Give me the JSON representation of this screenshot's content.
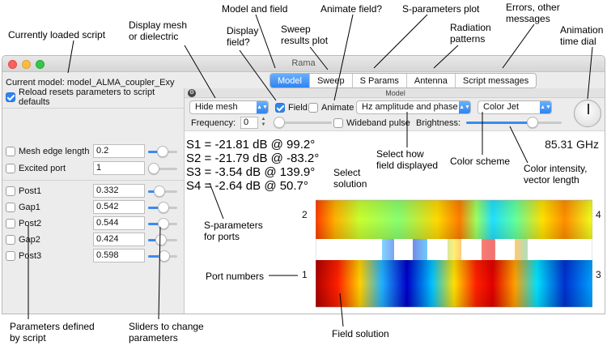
{
  "window": {
    "title": "Rama",
    "tabs": [
      "Model",
      "Sweep",
      "S Params",
      "Antenna",
      "Script messages"
    ],
    "active_tab": "Model"
  },
  "left_panel": {
    "current_model_label": "Current model:",
    "current_model_name": "model_ALMA_coupler_Exy",
    "reload_label": "Reload resets parameters to script defaults",
    "params": [
      {
        "label": "Mesh edge length",
        "value": "0.2",
        "slider": 0.5
      },
      {
        "label": "Excited port",
        "value": "1",
        "slider": 0.0
      },
      {
        "label": "Post1",
        "value": "0.332",
        "slider": 0.33
      },
      {
        "label": "Gap1",
        "value": "0.542",
        "slider": 0.54
      },
      {
        "label": "Post2",
        "value": "0.544",
        "slider": 0.54
      },
      {
        "label": "Gap2",
        "value": "0.424",
        "slider": 0.42
      },
      {
        "label": "Post3",
        "value": "0.598",
        "slider": 0.6
      }
    ]
  },
  "right_panel": {
    "section_label": "Model",
    "mesh_popup": "Hide mesh",
    "field_label": "Field",
    "animate_label": "Animate",
    "field_mode_popup": "Hz amplitude and phase",
    "color_popup": "Color Jet",
    "frequency_label": "Frequency:",
    "frequency_value": "0",
    "wideband_label": "Wideband pulse",
    "brightness_label": "Brightness:",
    "brightness_level": 0.72,
    "s_params": [
      "S1 = -21.81 dB @ 99.2°",
      "S2 = -21.79 dB @ -83.2°",
      "S3 = -3.54 dB @ 139.9°",
      "S4 = -2.64 dB @ 50.7°"
    ],
    "frequency_readout": "85.31 GHz",
    "ports": [
      "1",
      "2",
      "3",
      "4"
    ]
  },
  "annotations": {
    "currently_loaded_script": "Currently loaded script",
    "display_mesh": "Display mesh\nor dielectric",
    "model_and_field": "Model and field",
    "display_field": "Display\nfield?",
    "sweep_results": "Sweep\nresults plot",
    "animate_field": "Animate field?",
    "s_parameters_plot": "S-parameters plot",
    "radiation_patterns": "Radiation\npatterns",
    "errors_messages": "Errors, other\nmessages",
    "animation_dial": "Animation\ntime dial",
    "select_how": "Select how\nfield displayed",
    "select_solution": "Select\nsolution",
    "color_scheme": "Color scheme",
    "color_intensity": "Color intensity,\nvector length",
    "s_params_for_ports": "S-parameters\nfor ports",
    "port_numbers": "Port numbers",
    "params_defined": "Parameters defined\nby script",
    "sliders_change": "Sliders to change\nparameters",
    "field_solution": "Field solution"
  },
  "colors": {
    "accent": "#2f84f0",
    "jet": [
      "#00007f",
      "#0000ff",
      "#00ffff",
      "#ffff00",
      "#ff0000",
      "#7f0000"
    ]
  }
}
